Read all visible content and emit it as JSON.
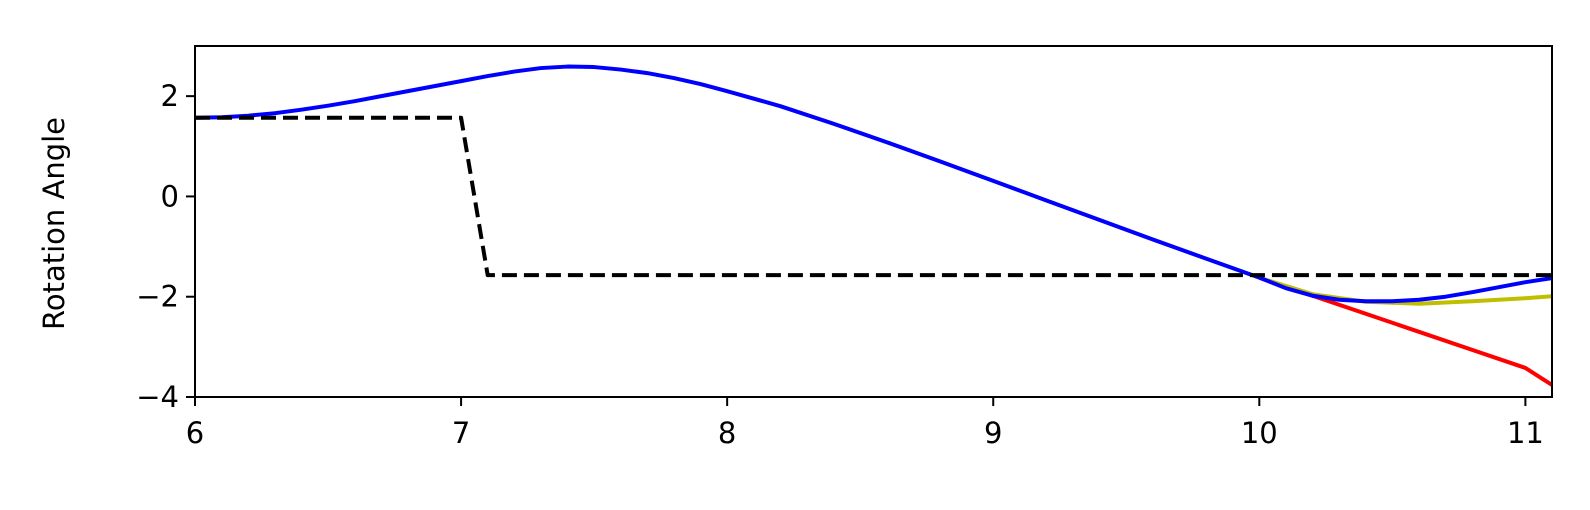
{
  "chart_data": {
    "type": "line",
    "title": "",
    "xlabel": "",
    "ylabel": "Rotation Angle",
    "xlim": [
      6.0,
      11.1
    ],
    "ylim": [
      -4,
      3
    ],
    "xticks": [
      6,
      7,
      8,
      9,
      10,
      11
    ],
    "xtick_labels": [
      "6",
      "7",
      "8",
      "9",
      "10",
      "11"
    ],
    "yticks": [
      -4,
      -2,
      0,
      2
    ],
    "ytick_labels": [
      "−4",
      "−2",
      "0",
      "2"
    ],
    "grid": false,
    "legend": "none",
    "series": [
      {
        "color": "#ff0000",
        "style": "solid",
        "x": [
          10.0,
          10.2,
          10.4,
          10.6,
          10.8,
          11.0,
          11.1
        ],
        "y": [
          -1.62,
          -1.98,
          -2.34,
          -2.7,
          -3.06,
          -3.42,
          -3.76
        ]
      },
      {
        "color": "#bfbf00",
        "style": "solid",
        "x": [
          10.0,
          10.2,
          10.4,
          10.6,
          10.8,
          11.0,
          11.1
        ],
        "y": [
          -1.62,
          -1.95,
          -2.1,
          -2.14,
          -2.09,
          -2.03,
          -1.99
        ]
      },
      {
        "color": "#0000ff",
        "style": "solid",
        "x": [
          6.0,
          6.1,
          6.2,
          6.3,
          6.4,
          6.5,
          6.6,
          6.7,
          6.8,
          6.9,
          7.0,
          7.1,
          7.2,
          7.3,
          7.4,
          7.5,
          7.6,
          7.7,
          7.8,
          7.9,
          8.0,
          8.2,
          8.4,
          8.6,
          8.8,
          9.0,
          9.2,
          9.4,
          9.6,
          9.8,
          10.0,
          10.1,
          10.2,
          10.3,
          10.4,
          10.5,
          10.6,
          10.7,
          10.8,
          10.9,
          11.0,
          11.1
        ],
        "y": [
          1.57,
          1.58,
          1.61,
          1.66,
          1.73,
          1.81,
          1.9,
          2.0,
          2.1,
          2.2,
          2.3,
          2.4,
          2.49,
          2.56,
          2.59,
          2.58,
          2.53,
          2.46,
          2.36,
          2.24,
          2.1,
          1.8,
          1.45,
          1.08,
          0.7,
          0.31,
          -0.08,
          -0.47,
          -0.86,
          -1.24,
          -1.62,
          -1.83,
          -1.98,
          -2.06,
          -2.09,
          -2.09,
          -2.06,
          -2.0,
          -1.91,
          -1.81,
          -1.71,
          -1.63
        ]
      },
      {
        "color": "#000000",
        "style": "dashed",
        "x": [
          6.0,
          7.0,
          7.1,
          11.1
        ],
        "y": [
          1.57,
          1.57,
          -1.57,
          -1.57
        ]
      }
    ]
  }
}
